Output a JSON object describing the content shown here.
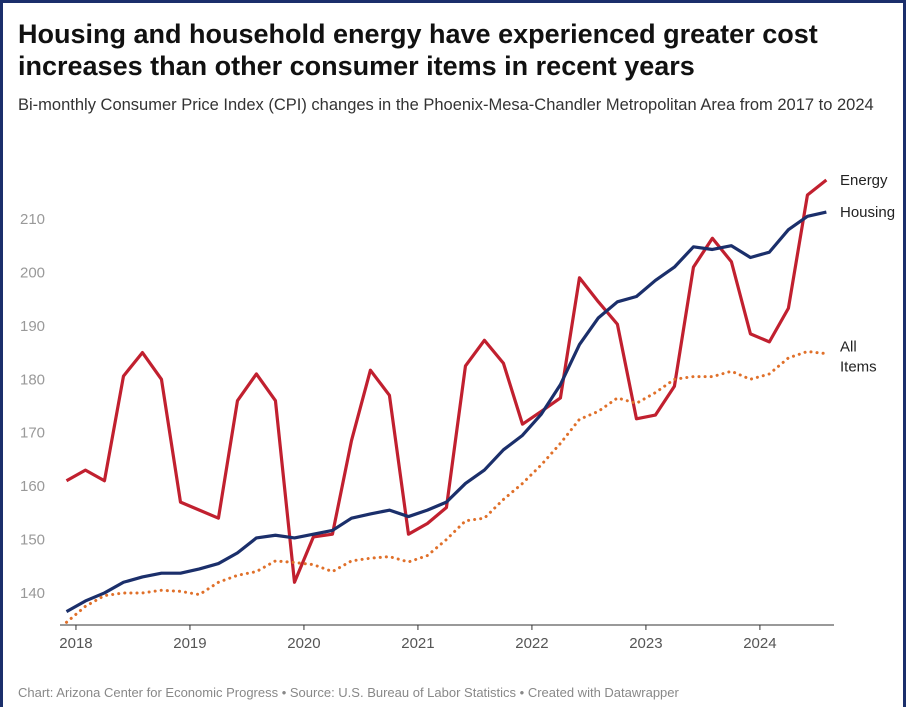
{
  "chart_data": {
    "type": "line",
    "title": "Housing and household energy have experienced greater cost increases than other consumer items in recent years",
    "subtitle": "Bi-monthly Consumer Price Index (CPI) changes in the Phoenix-Mesa-Chandler Metropolitan Area from 2017 to 2024",
    "footer": "Chart: Arizona Center for Economic Progress • Source: U.S. Bureau of Labor Statistics • Created with Datawrapper",
    "x": [
      2017.917,
      2018.083,
      2018.25,
      2018.417,
      2018.583,
      2018.75,
      2018.917,
      2019.083,
      2019.25,
      2019.417,
      2019.583,
      2019.75,
      2019.917,
      2020.083,
      2020.25,
      2020.417,
      2020.583,
      2020.75,
      2020.917,
      2021.083,
      2021.25,
      2021.417,
      2021.583,
      2021.75,
      2021.917,
      2022.083,
      2022.25,
      2022.417,
      2022.583,
      2022.75,
      2022.917,
      2023.083,
      2023.25,
      2023.417,
      2023.583,
      2023.75,
      2023.917,
      2024.083,
      2024.25,
      2024.417,
      2024.583
    ],
    "series": [
      {
        "name": "Energy",
        "color": "#c1202f",
        "dash": false,
        "values": [
          161,
          163,
          161,
          180.6,
          185,
          180,
          157,
          155.5,
          154,
          176,
          181,
          176,
          142,
          150.5,
          151,
          168.5,
          181.7,
          177,
          151,
          153,
          156,
          182.5,
          187.3,
          183,
          171.6,
          174,
          176.5,
          199,
          194.5,
          190.3,
          172.6,
          173.3,
          178.7,
          201,
          206.4,
          202,
          188.5,
          187,
          193.3,
          214.5,
          217.3
        ]
      },
      {
        "name": "Housing",
        "color": "#1b2f6b",
        "dash": false,
        "values": [
          136.5,
          138.5,
          140,
          142,
          143,
          143.7,
          143.7,
          144.5,
          145.5,
          147.5,
          150.3,
          150.8,
          150.3,
          151,
          151.7,
          154,
          154.8,
          155.5,
          154.3,
          155.5,
          157,
          160.5,
          163,
          166.8,
          169.5,
          173.5,
          179,
          186.5,
          191.5,
          194.5,
          195.5,
          198.5,
          201,
          204.8,
          204.3,
          205,
          202.8,
          203.8,
          208,
          210.5,
          211.3
        ]
      },
      {
        "name": "All Items",
        "color": "#e0702a",
        "dash": true,
        "values": [
          134.5,
          137.5,
          139.5,
          140,
          140,
          140.5,
          140.3,
          139.7,
          142,
          143.3,
          144,
          146,
          145.7,
          145.3,
          144,
          146,
          146.5,
          146.8,
          145.8,
          147,
          150,
          153.5,
          154,
          157.5,
          160.5,
          164,
          168,
          172.5,
          174,
          176.5,
          175.5,
          177.5,
          180,
          180.5,
          180.5,
          181.5,
          180,
          181,
          184,
          185.2,
          184.8
        ]
      }
    ],
    "xlim": [
      2017.86,
      2024.65
    ],
    "xticks": [
      2018,
      2019,
      2020,
      2021,
      2022,
      2023,
      2024
    ],
    "ylim": [
      134,
      218
    ],
    "yticks": [
      140,
      150,
      160,
      170,
      180,
      190,
      200,
      210
    ],
    "grid": false
  }
}
